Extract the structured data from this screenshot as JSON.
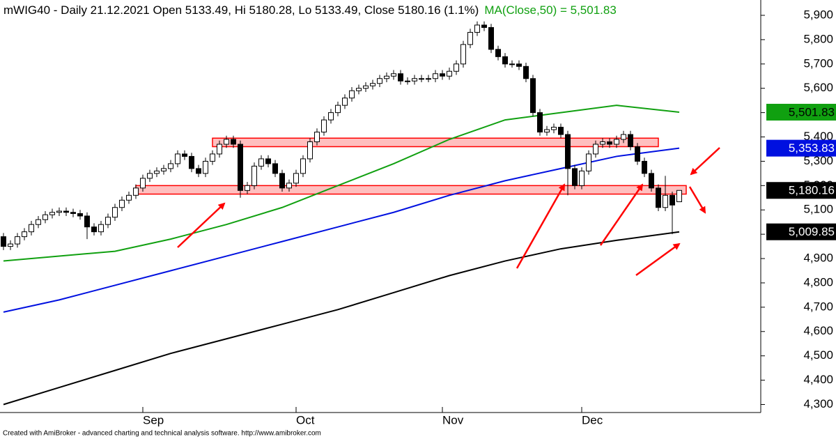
{
  "chart_data": {
    "type": "candlestick",
    "title": "mWIG40 - Daily 21.12.2021 Open 5133.49, Hi 5180.28, Lo 5133.49, Close 5180.16 (1.1%)",
    "ma_label": "MA(Close,50) = 5,501.83",
    "footer": "Created with AmiBroker - advanced charting and technical analysis software. http://www.amibroker.com",
    "categories": [
      null,
      null,
      null,
      null,
      null,
      null,
      null,
      null,
      null,
      null,
      null,
      null,
      null,
      null,
      null,
      null,
      null,
      null,
      null,
      null,
      "Sep",
      null,
      null,
      null,
      null,
      null,
      null,
      null,
      null,
      null,
      null,
      null,
      null,
      null,
      null,
      null,
      null,
      null,
      null,
      null,
      null,
      null,
      "Oct",
      null,
      null,
      null,
      null,
      null,
      null,
      null,
      null,
      null,
      null,
      null,
      null,
      null,
      null,
      null,
      null,
      null,
      null,
      null,
      null,
      "Nov",
      null,
      null,
      null,
      null,
      null,
      null,
      null,
      null,
      null,
      null,
      null,
      null,
      null,
      null,
      null,
      null,
      null,
      null,
      null,
      "Dec",
      null,
      null,
      null,
      null,
      null,
      null,
      null,
      null,
      null,
      null,
      null,
      null,
      null,
      null
    ],
    "open": [
      4990,
      4950,
      4960,
      4990,
      5010,
      5040,
      5060,
      5080,
      5090,
      5095,
      5090,
      5085,
      5075,
      5030,
      5010,
      5040,
      5070,
      5110,
      5140,
      5160,
      5190,
      5230,
      5250,
      5260,
      5270,
      5290,
      5330,
      5320,
      5270,
      5250,
      5300,
      5330,
      5370,
      5390,
      5370,
      5180,
      5200,
      5280,
      5310,
      5290,
      5250,
      5190,
      5210,
      5250,
      5310,
      5380,
      5420,
      5470,
      5500,
      5530,
      5560,
      5590,
      5600,
      5610,
      5620,
      5640,
      5650,
      5660,
      5630,
      5630,
      5640,
      5640,
      5640,
      5660,
      5650,
      5670,
      5700,
      5780,
      5830,
      5860,
      5850,
      5760,
      5730,
      5700,
      5700,
      5690,
      5640,
      5500,
      5420,
      5430,
      5440,
      5410,
      5270,
      5200,
      5260,
      5330,
      5370,
      5380,
      5370,
      5390,
      5410,
      5360,
      5300,
      5250,
      5190,
      5110,
      5160,
      5133.49
    ],
    "high": [
      5005,
      4975,
      5005,
      5025,
      5055,
      5075,
      5095,
      5105,
      5110,
      5110,
      5105,
      5100,
      5090,
      5045,
      5055,
      5085,
      5125,
      5155,
      5175,
      5205,
      5245,
      5265,
      5275,
      5285,
      5305,
      5345,
      5345,
      5335,
      5285,
      5315,
      5345,
      5385,
      5405,
      5405,
      5385,
      5215,
      5295,
      5325,
      5325,
      5305,
      5265,
      5225,
      5265,
      5325,
      5395,
      5435,
      5485,
      5515,
      5545,
      5575,
      5605,
      5615,
      5625,
      5635,
      5655,
      5665,
      5675,
      5675,
      5645,
      5655,
      5655,
      5655,
      5675,
      5675,
      5685,
      5715,
      5795,
      5845,
      5875,
      5875,
      5865,
      5775,
      5745,
      5715,
      5715,
      5705,
      5655,
      5515,
      5445,
      5455,
      5455,
      5425,
      5285,
      5275,
      5345,
      5385,
      5395,
      5395,
      5405,
      5425,
      5425,
      5375,
      5315,
      5265,
      5205,
      5240,
      5175,
      5180.28
    ],
    "low": [
      4935,
      4935,
      4945,
      4975,
      4995,
      5025,
      5045,
      5065,
      5075,
      5075,
      5070,
      5060,
      4980,
      4995,
      4995,
      5025,
      5055,
      5095,
      5125,
      5145,
      5175,
      5215,
      5235,
      5245,
      5255,
      5275,
      5305,
      5255,
      5235,
      5235,
      5285,
      5315,
      5355,
      5355,
      5150,
      5165,
      5185,
      5265,
      5275,
      5235,
      5175,
      5175,
      5195,
      5235,
      5295,
      5365,
      5405,
      5455,
      5485,
      5515,
      5545,
      5575,
      5585,
      5595,
      5605,
      5625,
      5635,
      5615,
      5615,
      5615,
      5625,
      5625,
      5625,
      5635,
      5635,
      5655,
      5685,
      5765,
      5815,
      5835,
      5745,
      5715,
      5685,
      5685,
      5675,
      5625,
      5485,
      5405,
      5405,
      5415,
      5395,
      5160,
      5185,
      5185,
      5245,
      5315,
      5355,
      5355,
      5355,
      5375,
      5345,
      5285,
      5235,
      5175,
      5095,
      5095,
      5000,
      5133.49
    ],
    "close": [
      4950,
      4960,
      4990,
      5010,
      5040,
      5060,
      5080,
      5090,
      5095,
      5090,
      5085,
      5075,
      5030,
      5010,
      5040,
      5070,
      5110,
      5140,
      5160,
      5190,
      5230,
      5250,
      5260,
      5270,
      5290,
      5330,
      5320,
      5270,
      5250,
      5300,
      5330,
      5370,
      5390,
      5370,
      5180,
      5200,
      5280,
      5310,
      5290,
      5250,
      5190,
      5210,
      5250,
      5310,
      5380,
      5420,
      5470,
      5500,
      5530,
      5560,
      5590,
      5600,
      5610,
      5620,
      5640,
      5650,
      5660,
      5630,
      5630,
      5640,
      5640,
      5640,
      5660,
      5650,
      5670,
      5700,
      5780,
      5830,
      5860,
      5850,
      5760,
      5730,
      5700,
      5700,
      5690,
      5640,
      5500,
      5420,
      5430,
      5440,
      5410,
      5270,
      5200,
      5260,
      5330,
      5370,
      5380,
      5370,
      5390,
      5410,
      5360,
      5300,
      5250,
      5190,
      5110,
      5160,
      5120,
      5180.16
    ],
    "close_label": "5,180.16",
    "series": [
      {
        "color": "#10a010",
        "text_color": "#000000",
        "x": [
          0,
          8,
          16,
          24,
          32,
          40,
          48,
          56,
          64,
          72,
          80,
          88,
          97
        ],
        "values": [
          4890,
          4910,
          4930,
          4980,
          5040,
          5110,
          5200,
          5290,
          5390,
          5470,
          5500,
          5530,
          5501.83
        ],
        "last_label": "5,501.83"
      },
      {
        "color": "#0010e0",
        "text_color": "#ffffff",
        "x": [
          0,
          8,
          16,
          24,
          32,
          40,
          48,
          56,
          64,
          72,
          80,
          88,
          97
        ],
        "values": [
          4680,
          4730,
          4790,
          4850,
          4910,
          4970,
          5030,
          5090,
          5160,
          5220,
          5270,
          5320,
          5353.83
        ],
        "last_label": "5,353.83"
      },
      {
        "color": "#000000",
        "text_color": "#ffffff",
        "x": [
          0,
          8,
          16,
          24,
          32,
          40,
          48,
          56,
          64,
          72,
          80,
          88,
          97
        ],
        "values": [
          4300,
          4370,
          4440,
          4510,
          4570,
          4630,
          4690,
          4760,
          4830,
          4890,
          4940,
          4975,
          5009.85
        ],
        "last_label": "5,009.85"
      }
    ],
    "zones": [
      {
        "x": [
          30,
          94
        ],
        "y": [
          5360,
          5395
        ]
      },
      {
        "x": [
          19,
          98
        ],
        "y": [
          5165,
          5200
        ]
      }
    ],
    "zone_color": "#ff0000",
    "ylim": [
      4267,
      5963
    ],
    "yticks": [
      {
        "value": 4300,
        "label": "4,300"
      },
      {
        "value": 4400,
        "label": "4,400"
      },
      {
        "value": 4500,
        "label": "4,500"
      },
      {
        "value": 4600,
        "label": "4,600"
      },
      {
        "value": 4700,
        "label": "4,700"
      },
      {
        "value": 4800,
        "label": "4,800"
      },
      {
        "value": 4900,
        "label": "4,900"
      },
      {
        "value": 5000,
        "label": "5,000"
      },
      {
        "value": 5100,
        "label": "5,100"
      },
      {
        "value": 5200,
        "label": "5,200"
      },
      {
        "value": 5300,
        "label": "5,300"
      },
      {
        "value": 5400,
        "label": "5,400"
      },
      {
        "value": 5500,
        "label": "5,500"
      },
      {
        "value": 5600,
        "label": "5,600"
      },
      {
        "value": 5700,
        "label": "5,700"
      },
      {
        "value": 5800,
        "label": "5,800"
      },
      {
        "value": 5900,
        "label": "5,900"
      }
    ],
    "grid": false
  }
}
